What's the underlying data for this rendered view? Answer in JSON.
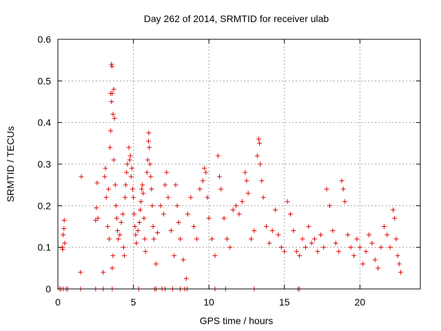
{
  "chart_data": {
    "type": "scatter",
    "title": "Day 262 of 2014, SRMTID for receiver ulab",
    "xlabel": "GPS time / hours",
    "ylabel": "SRMTID / TECUs",
    "xlim": [
      0,
      24
    ],
    "ylim": [
      0,
      0.6
    ],
    "x_ticks": [
      0,
      5,
      10,
      15,
      20
    ],
    "x_tick_labels": [
      "0",
      "5",
      "10",
      "15",
      "20"
    ],
    "y_ticks": [
      0,
      0.1,
      0.2,
      0.3,
      0.4,
      0.5,
      0.6
    ],
    "y_tick_labels": [
      "0",
      "0.1",
      "0.2",
      "0.3",
      "0.4",
      "0.5",
      "0.6"
    ],
    "grid": true,
    "marker": "plus",
    "marker_color": "#e00000",
    "series": [
      {
        "name": "SRMTID",
        "points": [
          [
            0.1,
            0
          ],
          [
            0.2,
            0
          ],
          [
            0.35,
            0
          ],
          [
            0.55,
            0
          ],
          [
            0.65,
            0
          ],
          [
            1.5,
            0
          ],
          [
            2.5,
            0
          ],
          [
            3.0,
            0
          ],
          [
            3.6,
            0
          ],
          [
            5.35,
            0
          ],
          [
            6.4,
            0
          ],
          [
            6.5,
            0
          ],
          [
            6.9,
            0
          ],
          [
            7.1,
            0
          ],
          [
            7.6,
            0
          ],
          [
            8.1,
            0
          ],
          [
            8.4,
            0
          ],
          [
            8.55,
            0
          ],
          [
            10.4,
            0
          ],
          [
            11.1,
            0
          ],
          [
            13.0,
            0
          ],
          [
            15.9,
            0
          ],
          [
            16.0,
            0
          ],
          [
            0.3,
            0.1
          ],
          [
            0.35,
            0.13
          ],
          [
            0.4,
            0.145
          ],
          [
            0.42,
            0.165
          ],
          [
            0.32,
            0.095
          ],
          [
            0.45,
            0.11
          ],
          [
            1.55,
            0.27
          ],
          [
            1.5,
            0.04
          ],
          [
            2.5,
            0.165
          ],
          [
            2.55,
            0.195
          ],
          [
            2.6,
            0.255
          ],
          [
            2.65,
            0.17
          ],
          [
            3.0,
            0.04
          ],
          [
            3.1,
            0.27
          ],
          [
            3.15,
            0.29
          ],
          [
            3.2,
            0.22
          ],
          [
            3.3,
            0.15
          ],
          [
            3.35,
            0.24
          ],
          [
            3.4,
            0.12
          ],
          [
            3.45,
            0.34
          ],
          [
            3.5,
            0.38
          ],
          [
            3.5,
            0.47
          ],
          [
            3.55,
            0.45
          ],
          [
            3.55,
            0.54
          ],
          [
            3.58,
            0.535
          ],
          [
            3.6,
            0.47
          ],
          [
            3.65,
            0.42
          ],
          [
            3.7,
            0.48
          ],
          [
            3.6,
            0.05
          ],
          [
            3.65,
            0.08
          ],
          [
            3.75,
            0.41
          ],
          [
            3.7,
            0.31
          ],
          [
            3.8,
            0.25
          ],
          [
            3.85,
            0.2
          ],
          [
            3.9,
            0.17
          ],
          [
            3.95,
            0.14
          ],
          [
            4.0,
            0.12
          ],
          [
            4.1,
            0.13
          ],
          [
            4.2,
            0.16
          ],
          [
            4.3,
            0.18
          ],
          [
            4.35,
            0.1
          ],
          [
            4.4,
            0.08
          ],
          [
            4.45,
            0.22
          ],
          [
            4.5,
            0.25
          ],
          [
            4.55,
            0.28
          ],
          [
            4.6,
            0.3
          ],
          [
            4.7,
            0.34
          ],
          [
            4.75,
            0.31
          ],
          [
            4.8,
            0.32
          ],
          [
            4.85,
            0.27
          ],
          [
            4.9,
            0.29
          ],
          [
            4.95,
            0.24
          ],
          [
            5.0,
            0.22
          ],
          [
            5.05,
            0.18
          ],
          [
            5.1,
            0.15
          ],
          [
            5.15,
            0.13
          ],
          [
            5.2,
            0.11
          ],
          [
            5.3,
            0.14
          ],
          [
            5.4,
            0.16
          ],
          [
            5.45,
            0.19
          ],
          [
            5.5,
            0.21
          ],
          [
            5.55,
            0.24
          ],
          [
            5.6,
            0.25
          ],
          [
            5.65,
            0.23
          ],
          [
            5.7,
            0.17
          ],
          [
            5.75,
            0.12
          ],
          [
            5.8,
            0.09
          ],
          [
            5.9,
            0.28
          ],
          [
            5.95,
            0.31
          ],
          [
            6.0,
            0.355
          ],
          [
            6.02,
            0.375
          ],
          [
            6.05,
            0.34
          ],
          [
            6.1,
            0.3
          ],
          [
            6.15,
            0.27
          ],
          [
            6.2,
            0.24
          ],
          [
            6.25,
            0.2
          ],
          [
            6.3,
            0.15
          ],
          [
            6.35,
            0.12
          ],
          [
            6.5,
            0.06
          ],
          [
            6.6,
            0.135
          ],
          [
            6.8,
            0.2
          ],
          [
            7.0,
            0.18
          ],
          [
            7.1,
            0.25
          ],
          [
            7.2,
            0.28
          ],
          [
            7.3,
            0.22
          ],
          [
            7.5,
            0.14
          ],
          [
            7.7,
            0.08
          ],
          [
            7.8,
            0.25
          ],
          [
            7.9,
            0.2
          ],
          [
            8.0,
            0.16
          ],
          [
            8.1,
            0.12
          ],
          [
            8.3,
            0.07
          ],
          [
            8.5,
            0.025
          ],
          [
            8.6,
            0.18
          ],
          [
            8.8,
            0.22
          ],
          [
            9.0,
            0.15
          ],
          [
            9.2,
            0.12
          ],
          [
            9.4,
            0.24
          ],
          [
            9.6,
            0.26
          ],
          [
            9.7,
            0.29
          ],
          [
            9.8,
            0.28
          ],
          [
            9.9,
            0.22
          ],
          [
            10.0,
            0.17
          ],
          [
            10.2,
            0.12
          ],
          [
            10.4,
            0.08
          ],
          [
            10.6,
            0.32
          ],
          [
            10.7,
            0.27
          ],
          [
            10.8,
            0.24
          ],
          [
            11.0,
            0.17
          ],
          [
            11.2,
            0.12
          ],
          [
            11.4,
            0.1
          ],
          [
            11.6,
            0.19
          ],
          [
            11.8,
            0.2
          ],
          [
            12.0,
            0.18
          ],
          [
            12.2,
            0.21
          ],
          [
            12.4,
            0.28
          ],
          [
            12.5,
            0.26
          ],
          [
            12.6,
            0.23
          ],
          [
            12.8,
            0.12
          ],
          [
            13.0,
            0.14
          ],
          [
            13.2,
            0.32
          ],
          [
            13.3,
            0.36
          ],
          [
            13.35,
            0.35
          ],
          [
            13.4,
            0.3
          ],
          [
            13.5,
            0.26
          ],
          [
            13.6,
            0.22
          ],
          [
            13.8,
            0.15
          ],
          [
            14.0,
            0.11
          ],
          [
            14.2,
            0.14
          ],
          [
            14.4,
            0.19
          ],
          [
            14.6,
            0.13
          ],
          [
            14.8,
            0.1
          ],
          [
            15.0,
            0.09
          ],
          [
            15.2,
            0.21
          ],
          [
            15.4,
            0.18
          ],
          [
            15.6,
            0.14
          ],
          [
            15.8,
            0.09
          ],
          [
            16.0,
            0.08
          ],
          [
            16.2,
            0.12
          ],
          [
            16.4,
            0.1
          ],
          [
            16.6,
            0.15
          ],
          [
            16.8,
            0.11
          ],
          [
            17.0,
            0.12
          ],
          [
            17.2,
            0.09
          ],
          [
            17.4,
            0.13
          ],
          [
            17.6,
            0.1
          ],
          [
            17.8,
            0.24
          ],
          [
            18.0,
            0.2
          ],
          [
            18.2,
            0.14
          ],
          [
            18.4,
            0.11
          ],
          [
            18.6,
            0.09
          ],
          [
            18.8,
            0.26
          ],
          [
            18.9,
            0.24
          ],
          [
            19.0,
            0.21
          ],
          [
            19.2,
            0.13
          ],
          [
            19.4,
            0.1
          ],
          [
            19.6,
            0.08
          ],
          [
            19.8,
            0.12
          ],
          [
            20.0,
            0.1
          ],
          [
            20.2,
            0.06
          ],
          [
            20.4,
            0.09
          ],
          [
            20.6,
            0.13
          ],
          [
            20.8,
            0.11
          ],
          [
            21.0,
            0.07
          ],
          [
            21.2,
            0.05
          ],
          [
            21.4,
            0.1
          ],
          [
            21.6,
            0.15
          ],
          [
            21.8,
            0.13
          ],
          [
            22.0,
            0.1
          ],
          [
            22.2,
            0.19
          ],
          [
            22.3,
            0.17
          ],
          [
            22.4,
            0.12
          ],
          [
            22.5,
            0.08
          ],
          [
            22.6,
            0.06
          ],
          [
            22.7,
            0.04
          ]
        ]
      }
    ]
  }
}
